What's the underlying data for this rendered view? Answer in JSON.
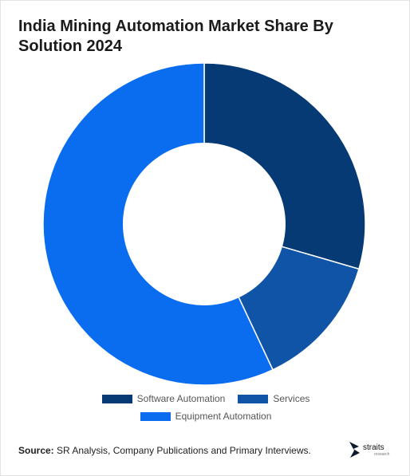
{
  "chart_data": {
    "type": "pie",
    "title": "India Mining Automation Market Share By Solution 2024",
    "categories": [
      "Software Automation",
      "Services",
      "Equipment Automation"
    ],
    "values": [
      29.5,
      13.5,
      57.0
    ],
    "colors": [
      "#063a75",
      "#0f54a6",
      "#0a6df0"
    ],
    "donut": true,
    "legend_position": "bottom"
  },
  "source": {
    "label": "Source:",
    "text": " SR Analysis, Company Publications and Primary Interviews."
  },
  "logo": {
    "name": "straits",
    "sub": "research",
    "icon": "straits-logo-icon"
  }
}
